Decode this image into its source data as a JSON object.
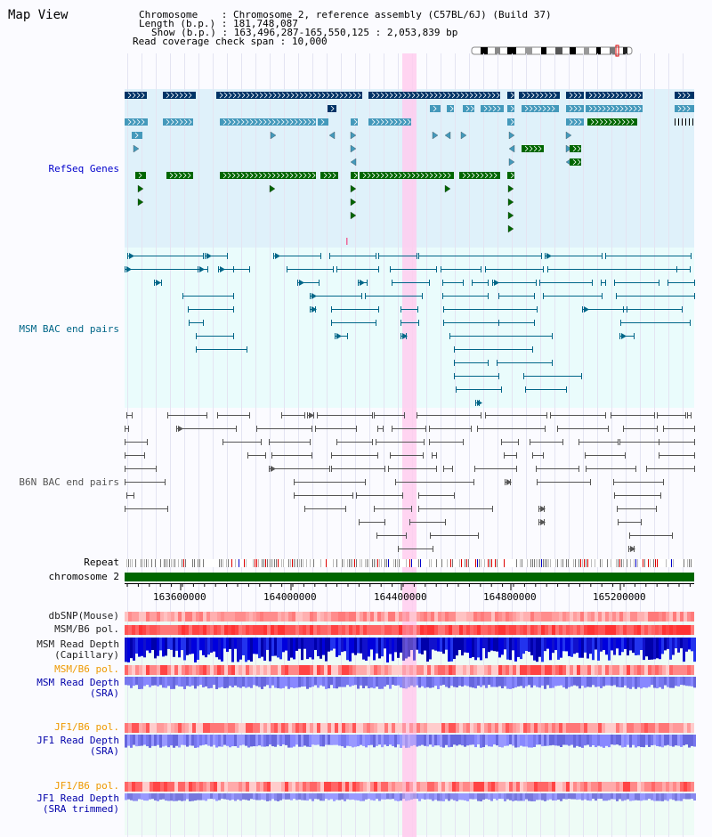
{
  "title": "Map View",
  "info": {
    "chromosome_label": "Chromosome",
    "chromosome_value": "Chromosome 2, reference assembly (C57BL/6J) (Build 37)",
    "length_label": "Length (b.p.)",
    "length_value": "181,748,087",
    "show_label": "Show (b.p.)",
    "show_value": "163,496,287-165,550,125 : 2,053,839 bp",
    "span_label": "Read coverage check span",
    "span_value": "10,000"
  },
  "tracks": {
    "refseq": "RefSeq Genes",
    "msm_bac": "MSM BAC end pairs",
    "b6n_bac": "B6N BAC end pairs",
    "repeat": "Repeat",
    "chromosome": "chromosome 2",
    "dbsnp": "dbSNP(Mouse)",
    "msm_b6_pol": "MSM/B6 pol.",
    "msm_depth_cap_1": "MSM Read Depth",
    "msm_depth_cap_2": "(Capillary)",
    "msm_b6_pol_2": "MSM/B6 pol.",
    "msm_depth_sra_1": "MSM Read Depth",
    "msm_depth_sra_2": "(SRA)",
    "jf1_pol": "JF1/B6 pol.",
    "jf1_depth_1": "JF1 Read Depth",
    "jf1_depth_2": "(SRA)",
    "jf1_pol_2": "JF1/B6 pol.",
    "jf1_trim_1": "JF1 Read Depth",
    "jf1_trim_2": "(SRA trimmed)"
  },
  "axis": {
    "ticks": [
      "163600000",
      "164000000",
      "164400000",
      "164800000",
      "165200000"
    ]
  },
  "colors": {
    "refseq_label": "#0000cc",
    "msm_bac_label": "#006688",
    "b6n_bac_label": "#555555",
    "pol_label": "#ee9900",
    "depth_label": "#0000aa",
    "gene_dark": "#003366",
    "gene_mid": "#4499bb",
    "gene_green": "#006600",
    "highlight": "#ffccee",
    "chrom_bar": "#006600"
  }
}
